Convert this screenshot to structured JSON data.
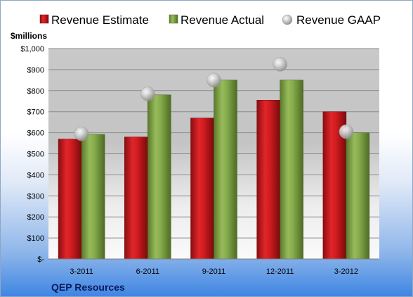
{
  "chart_data": {
    "type": "bar",
    "ylabel": "$millions",
    "ylim": [
      0,
      1000
    ],
    "y_ticks": [
      {
        "value": 0,
        "label": "$-"
      },
      {
        "value": 100,
        "label": "$100"
      },
      {
        "value": 200,
        "label": "$200"
      },
      {
        "value": 300,
        "label": "$300"
      },
      {
        "value": 400,
        "label": "$400"
      },
      {
        "value": 500,
        "label": "$500"
      },
      {
        "value": 600,
        "label": "$600"
      },
      {
        "value": 700,
        "label": "$700"
      },
      {
        "value": 800,
        "label": "$800"
      },
      {
        "value": 900,
        "label": "$900"
      },
      {
        "value": 1000,
        "label": "$1,000"
      }
    ],
    "categories": [
      "3-2011",
      "6-2011",
      "9-2011",
      "12-2011",
      "3-2012"
    ],
    "series": [
      {
        "name": "Revenue Estimate",
        "kind": "bar",
        "color": "#c8171b",
        "values": [
          570,
          580,
          670,
          755,
          700
        ]
      },
      {
        "name": "Revenue Actual",
        "kind": "bar",
        "color": "#7fa346",
        "values": [
          592,
          780,
          850,
          850,
          600
        ]
      },
      {
        "name": "Revenue GAAP",
        "kind": "marker",
        "color": "#b9b9b9",
        "values": [
          595,
          785,
          850,
          925,
          605
        ]
      }
    ],
    "legend_position": "top",
    "grid": true,
    "company": "QEP Resources"
  }
}
